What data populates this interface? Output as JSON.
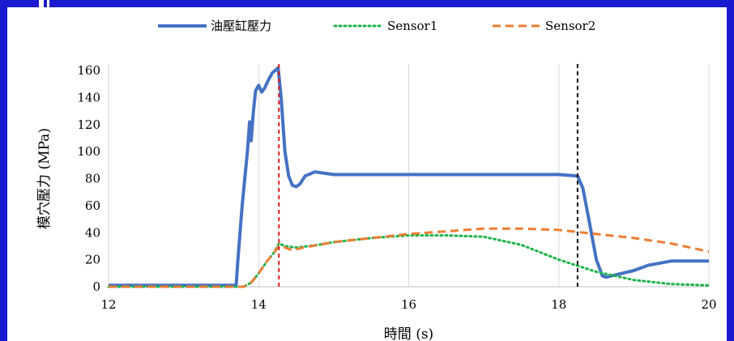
{
  "chart_data": {
    "type": "line",
    "title": "",
    "xlabel": "時間 (s)",
    "ylabel": "模穴壓力 (MPa)",
    "xlim": [
      12,
      20
    ],
    "ylim": [
      0,
      160
    ],
    "x_ticks": [
      "12",
      "14",
      "16",
      "18",
      "20"
    ],
    "y_ticks": [
      "0",
      "20",
      "40",
      "60",
      "80",
      "100",
      "120",
      "140",
      "160"
    ],
    "grid": "vertical",
    "legend_position": "top",
    "reference_lines": [
      {
        "x": 14.27,
        "color": "#dd1e1e",
        "style": "dashed"
      },
      {
        "x": 18.25,
        "color": "#111111",
        "style": "dashed"
      }
    ],
    "series": [
      {
        "name": "油壓缸壓力",
        "color": "#4472c4",
        "style": "solid",
        "x": [
          12.0,
          13.0,
          13.7,
          13.72,
          13.78,
          13.85,
          13.88,
          13.9,
          13.93,
          13.96,
          14.0,
          14.04,
          14.08,
          14.13,
          14.18,
          14.22,
          14.26,
          14.3,
          14.35,
          14.4,
          14.45,
          14.5,
          14.55,
          14.62,
          14.75,
          15.0,
          16.0,
          17.0,
          18.0,
          18.25,
          18.32,
          18.4,
          18.5,
          18.58,
          18.63,
          18.7,
          18.85,
          19.0,
          19.2,
          19.5,
          20.0
        ],
        "y": [
          1,
          1,
          1,
          17,
          60,
          100,
          122,
          108,
          130,
          145,
          149,
          144,
          147,
          153,
          158,
          160,
          162,
          140,
          100,
          82,
          75,
          74,
          76,
          82,
          85,
          83,
          83,
          83,
          83,
          82,
          73,
          50,
          20,
          8,
          7,
          8,
          10,
          12,
          16,
          19,
          19
        ]
      },
      {
        "name": "Sensor1",
        "color": "#1db34a",
        "style": "dotted",
        "x": [
          12.0,
          13.0,
          13.8,
          13.9,
          14.0,
          14.1,
          14.2,
          14.27,
          14.35,
          14.5,
          14.8,
          15.0,
          15.5,
          16.0,
          16.5,
          17.0,
          17.5,
          18.0,
          18.5,
          19.0,
          19.5,
          20.0
        ],
        "y": [
          0,
          0,
          0,
          3,
          10,
          18,
          25,
          32,
          30,
          29,
          31,
          33,
          36,
          38,
          38,
          37,
          31,
          20,
          11,
          5,
          2,
          1
        ]
      },
      {
        "name": "Sensor2",
        "color": "#ed7d31",
        "style": "dashed",
        "x": [
          12.0,
          13.0,
          13.8,
          13.9,
          14.0,
          14.1,
          14.2,
          14.27,
          14.35,
          14.45,
          14.6,
          15.0,
          15.5,
          16.0,
          16.5,
          17.0,
          17.5,
          18.0,
          18.5,
          19.0,
          19.5,
          20.0
        ],
        "y": [
          0,
          0,
          0,
          3,
          10,
          18,
          25,
          30,
          29,
          27,
          29,
          33,
          36,
          39,
          41,
          43,
          43,
          42,
          39,
          36,
          32,
          26
        ]
      }
    ]
  }
}
